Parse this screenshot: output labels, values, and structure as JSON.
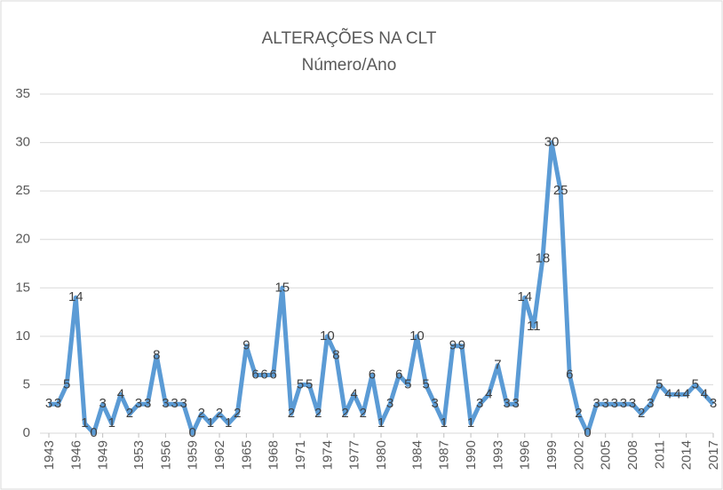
{
  "chart_data": {
    "type": "line",
    "title": "ALTERAÇÕES NA CLT",
    "subtitle": "Número/Ano",
    "x": [
      1943,
      1944,
      1945,
      1946,
      1947,
      1948,
      1949,
      1950,
      1951,
      1952,
      1953,
      1954,
      1955,
      1956,
      1957,
      1958,
      1959,
      1960,
      1961,
      1962,
      1963,
      1964,
      1965,
      1966,
      1967,
      1968,
      1969,
      1970,
      1971,
      1972,
      1973,
      1974,
      1975,
      1976,
      1977,
      1978,
      1979,
      1980,
      1981,
      1982,
      1983,
      1984,
      1985,
      1986,
      1987,
      1988,
      1989,
      1990,
      1991,
      1992,
      1993,
      1994,
      1995,
      1996,
      1997,
      1998,
      1999,
      2000,
      2001,
      2002,
      2003,
      2004,
      2005,
      2006,
      2007,
      2008,
      2009,
      2010,
      2011,
      2012,
      2013,
      2014,
      2015,
      2016,
      2017
    ],
    "series": [
      {
        "name": "Alterações",
        "color": "#5b9bd5",
        "values": [
          3,
          3,
          5,
          14,
          1,
          0,
          3,
          1,
          4,
          2,
          3,
          3,
          8,
          3,
          3,
          3,
          0,
          2,
          1,
          2,
          1,
          2,
          9,
          6,
          6,
          6,
          15,
          2,
          5,
          5,
          2,
          10,
          8,
          2,
          4,
          2,
          6,
          1,
          3,
          6,
          5,
          10,
          5,
          3,
          1,
          9,
          9,
          1,
          3,
          4,
          7,
          3,
          3,
          14,
          11,
          18,
          30,
          25,
          6,
          2,
          0,
          3,
          3,
          3,
          3,
          3,
          2,
          3,
          5,
          4,
          4,
          4,
          5,
          4,
          3
        ]
      }
    ],
    "xlim": [
      1943,
      2017
    ],
    "xticks": [
      1943,
      1946,
      1949,
      1953,
      1956,
      1959,
      1962,
      1965,
      1968,
      1971,
      1974,
      1977,
      1980,
      1984,
      1987,
      1990,
      1993,
      1996,
      1999,
      2002,
      2005,
      2008,
      2011,
      2014,
      2017
    ],
    "ylim": [
      0,
      35
    ],
    "yticks": [
      0,
      5,
      10,
      15,
      20,
      25,
      30,
      35
    ],
    "grid": true
  }
}
